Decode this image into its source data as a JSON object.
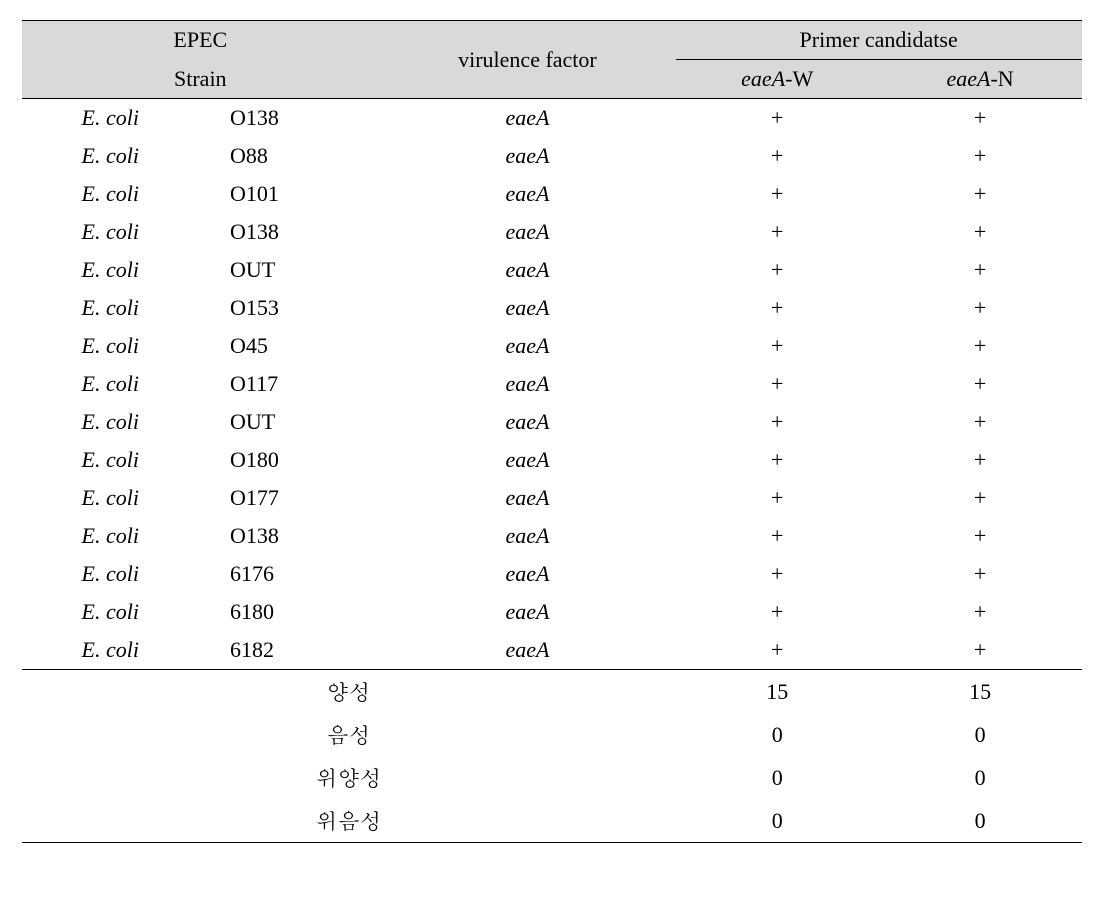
{
  "header": {
    "epec": "EPEC",
    "strain": "Strain",
    "virulence_factor": "virulence factor",
    "primer_candidates": "Primer candidatse",
    "primer_w_prefix": "eaeA",
    "primer_w_suffix": "-W",
    "primer_n_prefix": "eaeA",
    "primer_n_suffix": "-N"
  },
  "rows": [
    {
      "species": "E. coli",
      "strain": "O138",
      "vf": "eaeA",
      "w": "+",
      "n": "+"
    },
    {
      "species": "E. coli",
      "strain": "O88",
      "vf": "eaeA",
      "w": "+",
      "n": "+"
    },
    {
      "species": "E. coli",
      "strain": "O101",
      "vf": "eaeA",
      "w": "+",
      "n": "+"
    },
    {
      "species": "E. coli",
      "strain": "O138",
      "vf": "eaeA",
      "w": "+",
      "n": "+"
    },
    {
      "species": "E. coli",
      "strain": "OUT",
      "vf": "eaeA",
      "w": "+",
      "n": "+"
    },
    {
      "species": "E. coli",
      "strain": "O153",
      "vf": "eaeA",
      "w": "+",
      "n": "+"
    },
    {
      "species": "E. coli",
      "strain": "O45",
      "vf": "eaeA",
      "w": "+",
      "n": "+"
    },
    {
      "species": "E. coli",
      "strain": "O117",
      "vf": "eaeA",
      "w": "+",
      "n": "+"
    },
    {
      "species": "E. coli",
      "strain": "OUT",
      "vf": "eaeA",
      "w": "+",
      "n": "+"
    },
    {
      "species": "E. coli",
      "strain": "O180",
      "vf": "eaeA",
      "w": "+",
      "n": "+"
    },
    {
      "species": "E. coli",
      "strain": "O177",
      "vf": "eaeA",
      "w": "+",
      "n": "+"
    },
    {
      "species": "E. coli",
      "strain": "O138",
      "vf": "eaeA",
      "w": "+",
      "n": "+"
    },
    {
      "species": "E. coli",
      "strain": "6176",
      "vf": "eaeA",
      "w": "+",
      "n": "+"
    },
    {
      "species": "E. coli",
      "strain": "6180",
      "vf": "eaeA",
      "w": "+",
      "n": "+"
    },
    {
      "species": "E. coli",
      "strain": "6182",
      "vf": "eaeA",
      "w": "+",
      "n": "+"
    }
  ],
  "summary": [
    {
      "label": "양성",
      "w": "15",
      "n": "15"
    },
    {
      "label": "음성",
      "w": "0",
      "n": "0"
    },
    {
      "label": "위양성",
      "w": "0",
      "n": "0"
    },
    {
      "label": "위음성",
      "w": "0",
      "n": "0"
    }
  ]
}
